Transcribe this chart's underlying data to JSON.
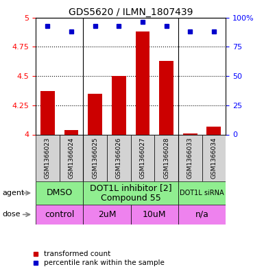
{
  "title": "GDS5620 / ILMN_1807439",
  "samples": [
    "GSM1366023",
    "GSM1366024",
    "GSM1366025",
    "GSM1366026",
    "GSM1366027",
    "GSM1366028",
    "GSM1366033",
    "GSM1366034"
  ],
  "bar_values": [
    4.37,
    4.04,
    4.35,
    4.5,
    4.88,
    4.63,
    4.01,
    4.07
  ],
  "dot_values": [
    93,
    88,
    93,
    93,
    96,
    93,
    88,
    88
  ],
  "ylim_left": [
    4.0,
    5.0
  ],
  "ylim_right": [
    0,
    100
  ],
  "yticks_left": [
    4.0,
    4.25,
    4.5,
    4.75,
    5.0
  ],
  "ytick_labels_left": [
    "4",
    "4.25",
    "4.5",
    "4.75",
    "5"
  ],
  "yticks_right": [
    0,
    25,
    50,
    75,
    100
  ],
  "ytick_labels_right": [
    "0",
    "25",
    "50",
    "75",
    "100%"
  ],
  "bar_color": "#cc0000",
  "dot_color": "#0000cc",
  "bar_bottom": 4.0,
  "group_separators": [
    1.5,
    5.5
  ],
  "agent_groups": [
    {
      "label": "DMSO",
      "start": 0,
      "end": 2,
      "fontsize": 9
    },
    {
      "label": "DOT1L inhibitor [2]\nCompound 55",
      "start": 2,
      "end": 6,
      "fontsize": 9
    },
    {
      "label": "DOT1L siRNA",
      "start": 6,
      "end": 8,
      "fontsize": 7
    }
  ],
  "dose_groups": [
    {
      "label": "control",
      "start": 0,
      "end": 2
    },
    {
      "label": "2uM",
      "start": 2,
      "end": 4
    },
    {
      "label": "10uM",
      "start": 4,
      "end": 6
    },
    {
      "label": "n/a",
      "start": 6,
      "end": 8
    }
  ],
  "agent_color": "#90ee90",
  "dose_color": "#ee82ee",
  "sample_bg_color": "#d3d3d3",
  "legend_items": [
    {
      "color": "#cc0000",
      "label": "transformed count"
    },
    {
      "color": "#0000cc",
      "label": "percentile rank within the sample"
    }
  ]
}
